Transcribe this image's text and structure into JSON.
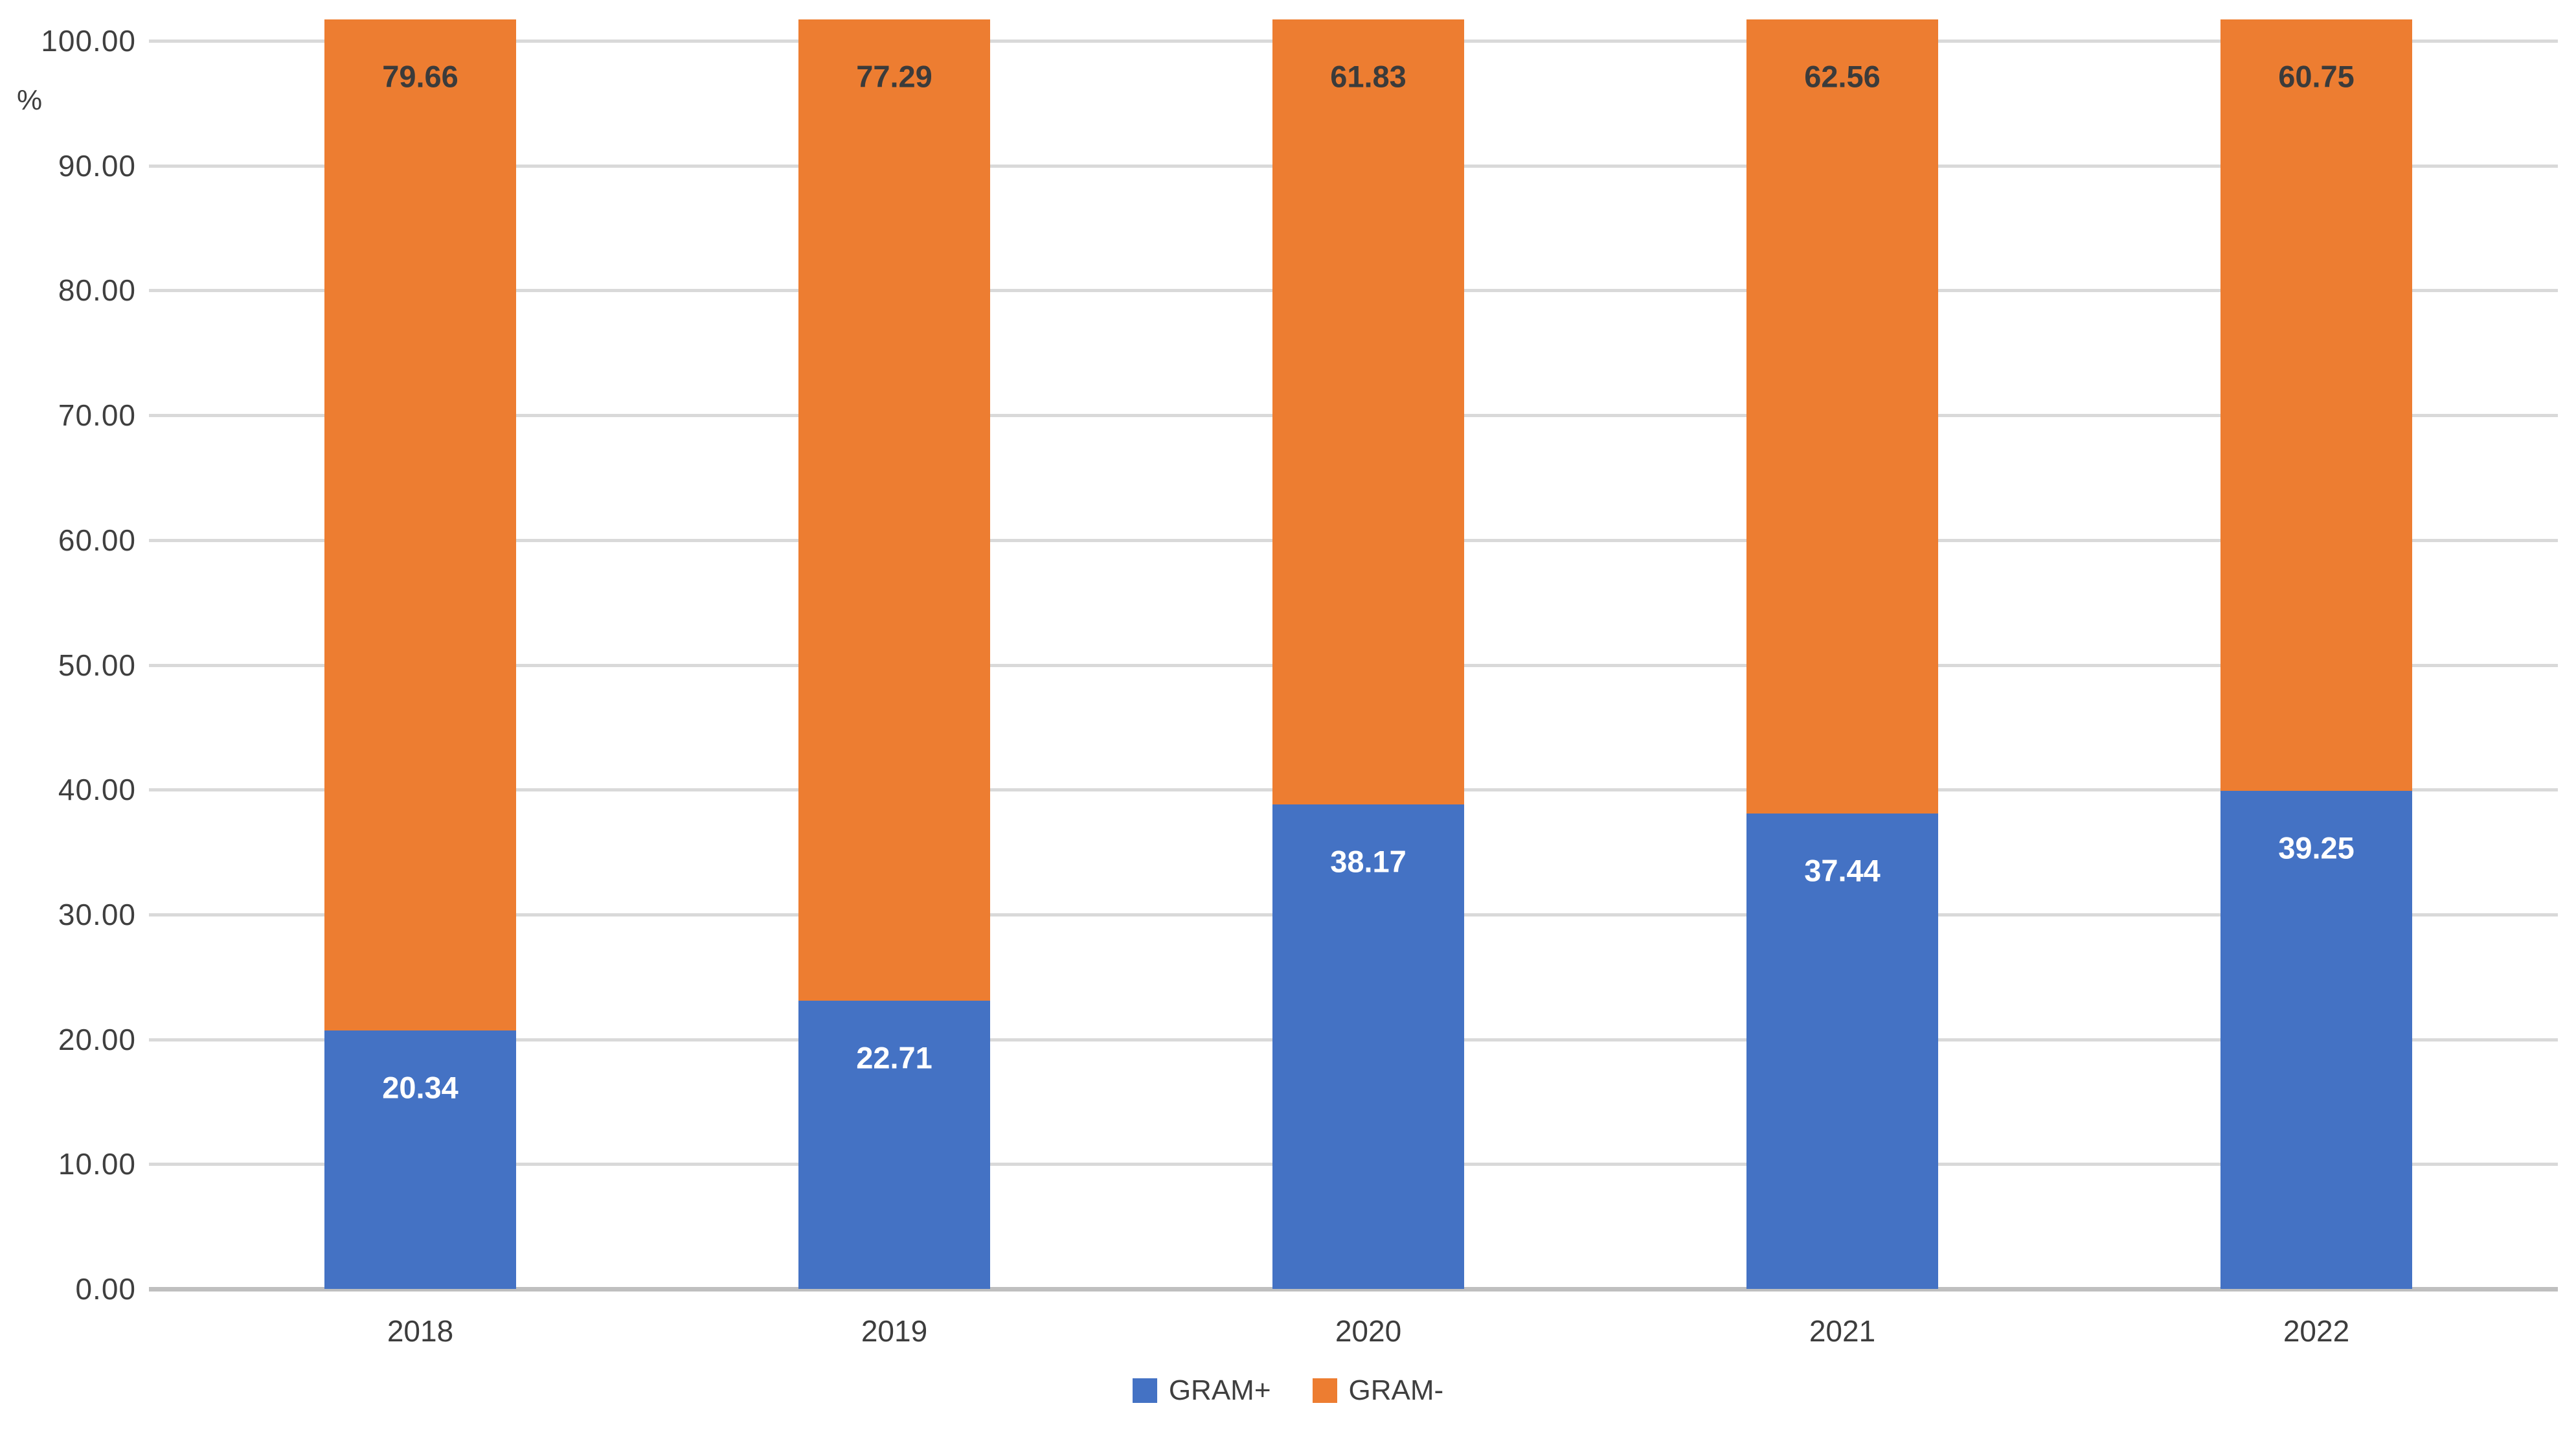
{
  "chart_data": {
    "type": "bar",
    "subtype": "stacked-column",
    "title": "",
    "xlabel": "",
    "ylabel": "%",
    "ylim": [
      0,
      100
    ],
    "y_tick_step": 10,
    "y_tick_labels": [
      "100.00",
      "90.00",
      "80.00",
      "70.00",
      "60.00",
      "50.00",
      "40.00",
      "30.00",
      "20.00",
      "10.00",
      "0.00"
    ],
    "grid": "horizontal",
    "legend_position": "bottom-center",
    "categories": [
      "2018",
      "2019",
      "2020",
      "2021",
      "2022"
    ],
    "series": [
      {
        "name": "GRAM+",
        "color": "#4472C4",
        "label_color": "#ffffff",
        "values": [
          20.34,
          22.71,
          38.17,
          37.44,
          39.25
        ]
      },
      {
        "name": "GRAM-",
        "color": "#ED7D31",
        "label_color": "#3b3b3b",
        "values": [
          79.66,
          77.29,
          61.83,
          62.56,
          60.75
        ]
      }
    ],
    "colors": {
      "gridline": "#d9d9d9",
      "baseline": "#bfbfbf",
      "tick_text": "#3f3f3f",
      "background": "#ffffff"
    }
  }
}
